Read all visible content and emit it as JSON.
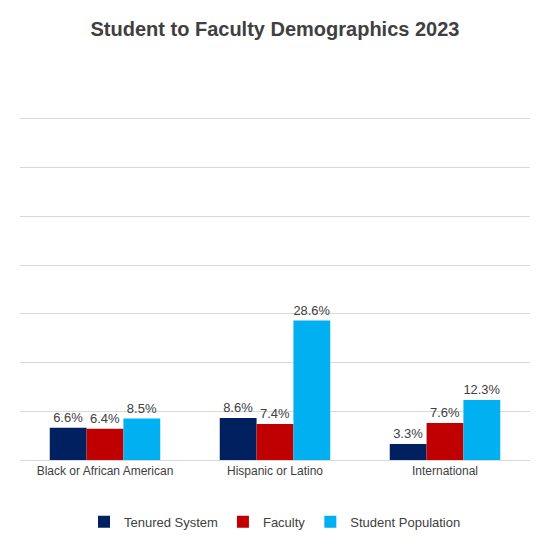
{
  "chart_data": {
    "type": "bar",
    "title": "Student to Faculty Demographics 2023",
    "categories": [
      "Black or African American",
      "Hispanic or Latino",
      "International"
    ],
    "series": [
      {
        "name": "Tenured System",
        "color": "#002060",
        "values": [
          6.6,
          8.6,
          3.3
        ],
        "value_labels": [
          "6.6%",
          "8.6%",
          "3.3%"
        ]
      },
      {
        "name": "Faculty",
        "color": "#C00000",
        "values": [
          6.4,
          7.4,
          7.6
        ],
        "value_labels": [
          "6.4%",
          "7.4%",
          "7.6%"
        ]
      },
      {
        "name": "Student Population",
        "color": "#00B0F0",
        "values": [
          8.5,
          28.6,
          12.3
        ],
        "value_labels": [
          "8.5%",
          "28.6%",
          "12.3%"
        ]
      }
    ],
    "ylim": [
      0,
      80
    ],
    "yticks": [
      0,
      10,
      20,
      30,
      40,
      50,
      60,
      70,
      80
    ],
    "grid": true,
    "legend": "bottom",
    "data_labels": true,
    "tick_labels": "x"
  }
}
